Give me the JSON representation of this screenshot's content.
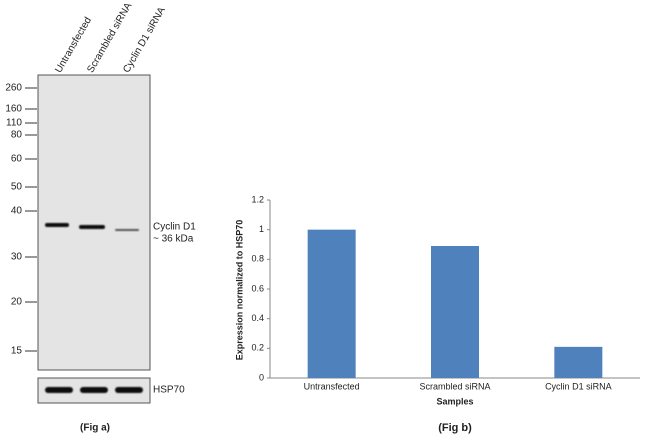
{
  "figure_a": {
    "lanes": [
      "Untransfected",
      "Scrambled siRNA",
      "Cyclin D1 siRNA"
    ],
    "markers": [
      "260",
      "160",
      "110",
      "80",
      "60",
      "50",
      "40",
      "30",
      "20",
      "15"
    ],
    "band_label": "Cyclin D1",
    "band_size": "~ 36 kDa",
    "control_label": "HSP70",
    "caption": "(Fig a)"
  },
  "chart_data": {
    "type": "bar",
    "y_label": "Expression  normalized to HSP70",
    "x_label": "Samples",
    "caption": "(Fig b)",
    "categories": [
      "Untransfected",
      "Scrambled siRNA",
      "Cyclin D1 siRNA"
    ],
    "values": [
      1,
      0.89,
      0.21
    ],
    "color": "#4f81bd",
    "ylim": [
      0,
      1.2
    ],
    "yticks": [
      0,
      0.2,
      0.4,
      0.6,
      0.8,
      1,
      1.2
    ],
    "grid": false
  }
}
